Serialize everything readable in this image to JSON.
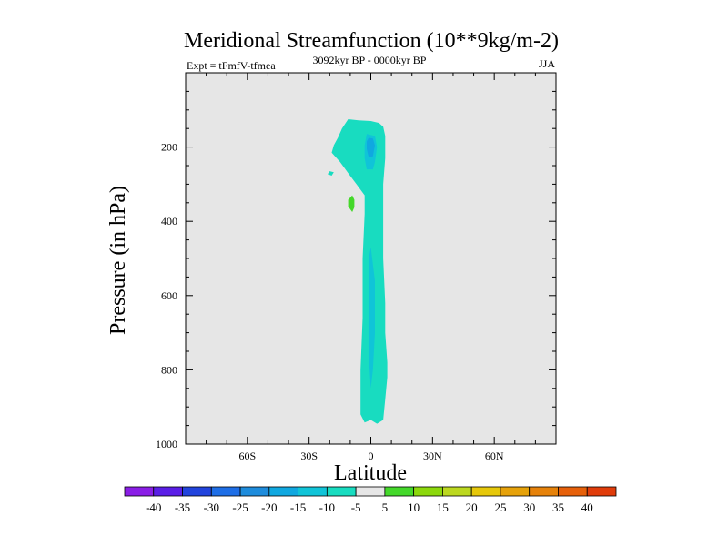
{
  "chart_data": {
    "type": "contour",
    "title": "Meridional Streamfunction (10**9kg/m-2)",
    "subtitle_left": "Expt = tFmfV-tfmea",
    "subtitle_center": "3092kyr BP - 0000kyr BP",
    "subtitle_right": "JJA",
    "xlabel": "Latitude",
    "ylabel": "Pressure (in hPa)",
    "xlim": [
      -90,
      90
    ],
    "ylim": [
      1000,
      0
    ],
    "x_ticks": [
      {
        "value": -60,
        "label": "60S"
      },
      {
        "value": -30,
        "label": "30S"
      },
      {
        "value": 0,
        "label": "0"
      },
      {
        "value": 30,
        "label": "30N"
      },
      {
        "value": 60,
        "label": "60N"
      }
    ],
    "y_ticks": [
      {
        "value": 200,
        "label": "200"
      },
      {
        "value": 400,
        "label": "400"
      },
      {
        "value": 600,
        "label": "600"
      },
      {
        "value": 800,
        "label": "800"
      },
      {
        "value": 1000,
        "label": "1000"
      }
    ],
    "background_color": "#e6e6e6",
    "contour_levels": [
      -40,
      -35,
      -30,
      -25,
      -20,
      -15,
      -10,
      -5,
      5,
      10,
      15,
      20,
      25,
      30,
      35,
      40
    ],
    "colorbar_colors": [
      "#8a1ee6",
      "#5a1ee6",
      "#2244dd",
      "#1e6ee6",
      "#1e8cdc",
      "#10a8e0",
      "#10c4d8",
      "#18dcc0",
      "#e6e6e6",
      "#44d82a",
      "#8cd80c",
      "#bcd820",
      "#e6c80a",
      "#e6a20a",
      "#e6820a",
      "#e6600a",
      "#e03c0a"
    ],
    "regions": [
      {
        "name": "main-band",
        "level": -5,
        "color": "#18dcc0",
        "outline": [
          [
            -11,
            125
          ],
          [
            -6,
            128
          ],
          [
            0,
            130
          ],
          [
            4,
            135
          ],
          [
            6,
            145
          ],
          [
            7,
            170
          ],
          [
            7,
            230
          ],
          [
            6,
            300
          ],
          [
            6,
            400
          ],
          [
            6,
            500
          ],
          [
            7,
            620
          ],
          [
            7,
            700
          ],
          [
            8,
            780
          ],
          [
            8,
            820
          ],
          [
            7,
            880
          ],
          [
            6,
            935
          ],
          [
            3,
            945
          ],
          [
            0,
            935
          ],
          [
            -3,
            942
          ],
          [
            -5,
            920
          ],
          [
            -5,
            800
          ],
          [
            -4,
            660
          ],
          [
            -4,
            500
          ],
          [
            -3,
            380
          ],
          [
            -3,
            330
          ],
          [
            -7,
            300
          ],
          [
            -11,
            270
          ],
          [
            -15,
            240
          ],
          [
            -19,
            215
          ],
          [
            -18,
            195
          ],
          [
            -16,
            175
          ],
          [
            -14,
            150
          ]
        ]
      },
      {
        "name": "jet-core-outer",
        "level": -10,
        "color": "#10c4d8",
        "outline": [
          [
            -2,
            165
          ],
          [
            2,
            170
          ],
          [
            3,
            200
          ],
          [
            2,
            240
          ],
          [
            1,
            260
          ],
          [
            -2,
            260
          ],
          [
            -3,
            230
          ],
          [
            -3,
            195
          ]
        ]
      },
      {
        "name": "jet-core-inner",
        "level": -15,
        "color": "#10a8e0",
        "outline": [
          [
            -1,
            175
          ],
          [
            1,
            177
          ],
          [
            2,
            195
          ],
          [
            1,
            225
          ],
          [
            -1,
            228
          ],
          [
            -2,
            205
          ],
          [
            -2,
            185
          ]
        ]
      },
      {
        "name": "lower-core",
        "level": -10,
        "color": "#10c4d8",
        "outline": [
          [
            0,
            470
          ],
          [
            2,
            560
          ],
          [
            2,
            700
          ],
          [
            1,
            800
          ],
          [
            0,
            850
          ],
          [
            -1,
            760
          ],
          [
            -1,
            620
          ],
          [
            -1,
            500
          ]
        ]
      },
      {
        "name": "small-negative-patch",
        "level": -5,
        "color": "#18dcc0",
        "outline": [
          [
            -20,
            265
          ],
          [
            -18,
            268
          ],
          [
            -19,
            277
          ],
          [
            -21,
            273
          ]
        ]
      },
      {
        "name": "small-positive-patch",
        "level": 5,
        "color": "#44d82a",
        "outline": [
          [
            -9,
            330
          ],
          [
            -8,
            342
          ],
          [
            -8,
            362
          ],
          [
            -9,
            375
          ],
          [
            -11,
            360
          ],
          [
            -11,
            342
          ]
        ]
      }
    ]
  }
}
